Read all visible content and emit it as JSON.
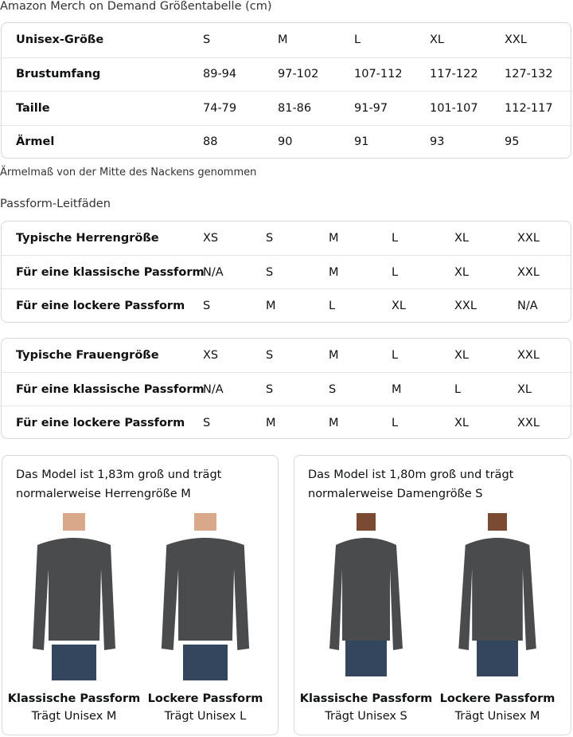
{
  "title": "Amazon Merch on Demand Größentabelle (cm)",
  "unisex_table": {
    "rows": [
      [
        "Unisex-Größe",
        "S",
        "M",
        "L",
        "XL",
        "XXL"
      ],
      [
        "Brustumfang",
        "89-94",
        "97-102",
        "107-112",
        "117-122",
        "127-132"
      ],
      [
        "Taille",
        "74-79",
        "81-86",
        "91-97",
        "101-107",
        "112-117"
      ],
      [
        "Ärmel",
        "88",
        "90",
        "91",
        "93",
        "95"
      ]
    ]
  },
  "note": "Ärmelmaß von der Mitte des Nackens genommen",
  "fit_title": "Passform-Leitfäden",
  "men_table": {
    "rows": [
      [
        "Typische Herrengröße",
        "XS",
        "S",
        "M",
        "L",
        "XL",
        "XXL"
      ],
      [
        "Für eine klassische Passform",
        "N/A",
        "S",
        "M",
        "L",
        "XL",
        "XXL"
      ],
      [
        "Für eine lockere Passform",
        "S",
        "M",
        "L",
        "XL",
        "XXL",
        "N/A"
      ]
    ]
  },
  "women_table": {
    "rows": [
      [
        "Typische Frauengröße",
        "XS",
        "S",
        "M",
        "L",
        "XL",
        "XXL"
      ],
      [
        "Für eine klassische Passform",
        "N/A",
        "S",
        "S",
        "M",
        "L",
        "XL"
      ],
      [
        "Für eine lockere Passform",
        "S",
        "M",
        "M",
        "L",
        "XL",
        "XXL"
      ]
    ]
  },
  "cards": [
    {
      "desc": "Das Model ist 1,83m groß und trägt normalerweise Herrengröße M",
      "figures": [
        {
          "fit": "Klassische Passform",
          "wears": "Trägt Unisex M"
        },
        {
          "fit": "Lockere Passform",
          "wears": "Trägt Unisex L"
        }
      ]
    },
    {
      "desc": "Das Model ist 1,80m groß und trägt normalerweise Damengröße S",
      "figures": [
        {
          "fit": "Klassische Passform",
          "wears": "Trägt Unisex S"
        },
        {
          "fit": "Lockere Passform",
          "wears": "Trägt Unisex M"
        }
      ]
    }
  ],
  "colors": {
    "shirt": "#4a4b4d",
    "jeans": "#34465e",
    "border": "#d5d9d9"
  }
}
